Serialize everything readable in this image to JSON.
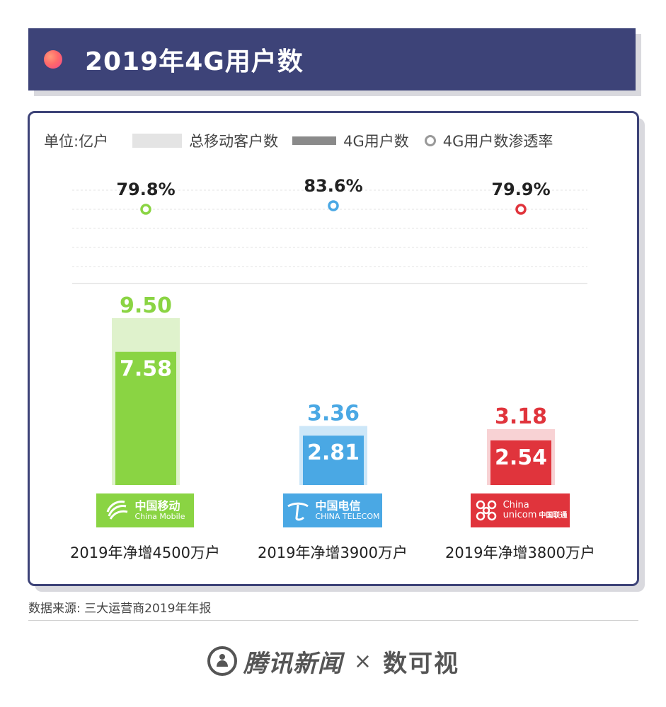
{
  "title": "2019年4G用户数",
  "legend": {
    "unit": "单位:亿户",
    "total_label": "总移动客户数",
    "users_4g_label": "4G用户数",
    "rate_label": "4G用户数渗透率"
  },
  "colors": {
    "title_bar": "#3d4378",
    "china_mobile": "#8ad443",
    "china_telecom": "#4aa8e4",
    "china_unicom": "#e0343c"
  },
  "chart_data": {
    "type": "bar",
    "title": "2019年4G用户数",
    "unit": "亿户",
    "categories": [
      "中国移动",
      "中国电信",
      "中国联通"
    ],
    "series": [
      {
        "name": "总移动客户数",
        "values": [
          9.5,
          3.36,
          3.18
        ]
      },
      {
        "name": "4G用户数",
        "values": [
          7.58,
          2.81,
          2.54
        ]
      },
      {
        "name": "4G用户数渗透率",
        "values": [
          79.8,
          83.6,
          79.9
        ],
        "unit": "%"
      }
    ],
    "total_labels": [
      "9.50",
      "3.36",
      "3.18"
    ],
    "users_4g_labels": [
      "7.58",
      "2.81",
      "2.54"
    ],
    "rate_labels": [
      "79.8%",
      "83.6%",
      "79.9%"
    ],
    "ylim": [
      0,
      9.5
    ],
    "legend_position": "top"
  },
  "operators": [
    {
      "cn": "中国移动",
      "en": "China Mobile",
      "net_add": "2019年净增4500万户"
    },
    {
      "cn": "中国电信",
      "en": "CHINA TELECOM",
      "net_add": "2019年净增3900万户"
    },
    {
      "cn": "中国联通",
      "en_top": "China",
      "en_bottom": "unicom",
      "net_add": "2019年净增3800万户"
    }
  ],
  "source": "数据来源: 三大运营商2019年年报",
  "footer": {
    "brand": "腾讯新闻",
    "separator": "×",
    "partner": "数可视"
  }
}
